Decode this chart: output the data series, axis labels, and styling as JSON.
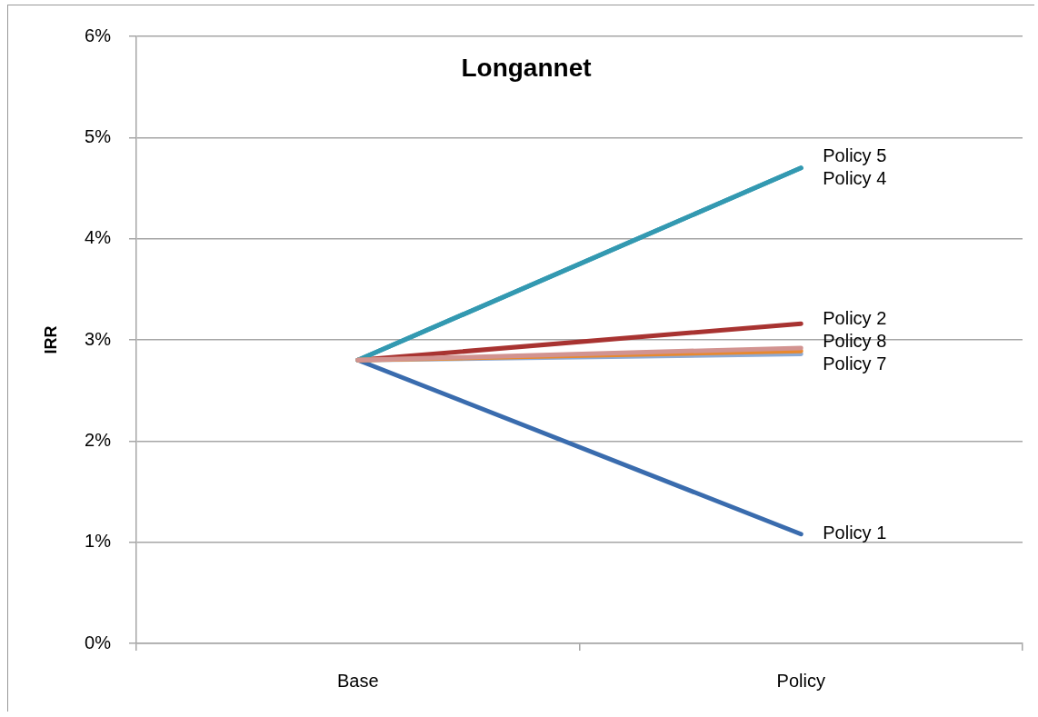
{
  "chart_data": {
    "type": "line",
    "title": "Longannet",
    "ylabel": "IRR",
    "categories": [
      "Base",
      "Policy"
    ],
    "series": [
      {
        "name": "Policy 1",
        "color": "#3a6cae",
        "values": [
          2.8,
          1.08
        ]
      },
      {
        "name": "Policy 2",
        "color": "#a83331",
        "values": [
          2.8,
          3.16
        ]
      },
      {
        "name": "Policy 4",
        "color": "#3399b1",
        "values": [
          2.8,
          4.7
        ]
      },
      {
        "name": "Policy 5",
        "color": "#3399b1",
        "values": [
          2.8,
          4.7
        ]
      },
      {
        "name": "Policy 7",
        "color": "#8eaad4",
        "values": [
          2.8,
          2.86
        ]
      },
      {
        "color": "#e8892f",
        "values": [
          2.8,
          2.89
        ]
      },
      {
        "name": "Policy 8",
        "color": "#d29390",
        "values": [
          2.8,
          2.92
        ]
      }
    ],
    "ylim": [
      0,
      6
    ],
    "yticks": [
      {
        "value": 0,
        "label": "0%"
      },
      {
        "value": 1,
        "label": "1%"
      },
      {
        "value": 2,
        "label": "2%"
      },
      {
        "value": 3,
        "label": "3%"
      },
      {
        "value": 4,
        "label": "4%"
      },
      {
        "value": 5,
        "label": "5%"
      },
      {
        "value": 6,
        "label": "6%"
      }
    ],
    "grid": "y",
    "legend": false
  }
}
